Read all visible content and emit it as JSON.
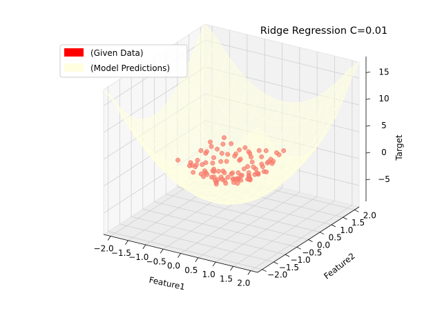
{
  "chart_data": {
    "type": "scatter3d",
    "title": "Ridge Regression C=0.01",
    "xlabel": "Feature1",
    "ylabel": "Feature2",
    "zlabel": "Target",
    "xlim": [
      -2.2,
      2.2
    ],
    "ylim": [
      -2.2,
      2.2
    ],
    "zlim": [
      -9,
      18
    ],
    "x_ticks": [
      "−2.0",
      "−1.5",
      "−1.0",
      "−0.5",
      "0.0",
      "0.5",
      "1.0",
      "1.5",
      "2.0"
    ],
    "y_ticks": [
      "−2.0",
      "−1.5",
      "−1.0",
      "−0.5",
      "0.0",
      "0.5",
      "1.0",
      "1.5",
      "2.0"
    ],
    "z_ticks": [
      "−5",
      "0",
      "5",
      "10",
      "15"
    ],
    "grid": true,
    "legend_position": "top-left",
    "legend": [
      {
        "label": "(Given Data)",
        "color": "#ff0000"
      },
      {
        "label": "(Model Predictions)",
        "color": "#ffffe0"
      }
    ],
    "scatter_color": "#fa8072",
    "surface_color": "#ffffe0",
    "surface_model": "target ≈ 2.5·Feature1² + 2.5·Feature2² − 5",
    "points": [
      [
        -0.6,
        -0.2,
        1.4
      ],
      [
        0.2,
        0.4,
        0.3
      ],
      [
        -0.1,
        -0.5,
        -0.6
      ],
      [
        0.5,
        -0.3,
        1.1
      ],
      [
        -0.3,
        0.6,
        0.9
      ],
      [
        0.7,
        0.5,
        1.5
      ],
      [
        -0.8,
        0.1,
        2.0
      ],
      [
        0.1,
        -0.8,
        0.2
      ],
      [
        0.4,
        0.1,
        -0.9
      ],
      [
        -0.4,
        -0.7,
        1.0
      ],
      [
        0.9,
        -0.6,
        2.4
      ],
      [
        -0.2,
        0.9,
        1.8
      ],
      [
        0.6,
        0.8,
        1.2
      ],
      [
        -0.9,
        -0.4,
        1.5
      ],
      [
        0.0,
        0.0,
        -0.3
      ],
      [
        0.3,
        -0.9,
        2.1
      ],
      [
        -0.5,
        0.3,
        0.4
      ],
      [
        0.8,
        0.2,
        0.9
      ],
      [
        -0.7,
        0.7,
        2.2
      ],
      [
        0.2,
        -0.2,
        -1.0
      ],
      [
        -0.1,
        0.5,
        0.7
      ],
      [
        0.5,
        0.6,
        0.2
      ],
      [
        -0.6,
        -0.8,
        2.6
      ],
      [
        1.0,
        0.0,
        1.7
      ],
      [
        -1.0,
        0.2,
        1.9
      ],
      [
        0.3,
        0.3,
        -0.4
      ],
      [
        -0.3,
        -0.3,
        0.5
      ],
      [
        0.7,
        -0.8,
        1.3
      ],
      [
        -0.4,
        0.8,
        0.6
      ],
      [
        0.1,
        0.7,
        1.1
      ],
      [
        -0.8,
        -0.6,
        1.6
      ],
      [
        0.6,
        -0.1,
        0.0
      ],
      [
        -0.2,
        -0.9,
        1.4
      ],
      [
        0.9,
        0.7,
        2.8
      ],
      [
        -0.5,
        0.0,
        -0.2
      ],
      [
        0.4,
        -0.5,
        0.8
      ],
      [
        -0.9,
        0.5,
        2.0
      ],
      [
        0.0,
        -0.6,
        0.3
      ],
      [
        0.2,
        0.9,
        1.9
      ],
      [
        -0.7,
        -0.2,
        0.9
      ],
      [
        0.8,
        -0.4,
        1.0
      ],
      [
        -0.1,
        0.2,
        -0.8
      ],
      [
        0.5,
        0.3,
        0.6
      ],
      [
        -0.6,
        0.5,
        1.2
      ],
      [
        0.3,
        -0.7,
        0.4
      ],
      [
        -0.3,
        0.1,
        -0.5
      ],
      [
        0.7,
        0.9,
        2.3
      ],
      [
        -0.8,
        0.9,
        2.7
      ],
      [
        0.1,
        -0.3,
        0.1
      ],
      [
        -0.4,
        -0.5,
        0.7
      ],
      [
        0.6,
        0.4,
        1.4
      ],
      [
        -0.2,
        0.7,
        0.2
      ],
      [
        0.9,
        -0.2,
        1.8
      ],
      [
        -1.0,
        -0.8,
        2.9
      ],
      [
        0.4,
        0.7,
        1.6
      ],
      [
        -0.5,
        -0.9,
        1.7
      ],
      [
        0.2,
        0.1,
        -0.6
      ],
      [
        -0.7,
        0.3,
        0.8
      ],
      [
        0.8,
        -0.9,
        2.5
      ],
      [
        0.0,
        0.8,
        1.3
      ],
      [
        -0.3,
        -0.1,
        0.0
      ],
      [
        0.5,
        -0.7,
        1.5
      ],
      [
        -0.9,
        -0.1,
        1.1
      ],
      [
        0.3,
        0.5,
        0.1
      ],
      [
        -0.1,
        -0.7,
        0.9
      ],
      [
        0.7,
        0.1,
        0.5
      ],
      [
        -0.6,
        0.9,
        1.9
      ],
      [
        0.1,
        0.4,
        -0.3
      ],
      [
        -0.4,
        0.4,
        0.3
      ],
      [
        0.9,
        0.4,
        2.0
      ],
      [
        -0.2,
        -0.4,
        -0.7
      ],
      [
        0.6,
        -0.5,
        0.9
      ],
      [
        -0.8,
        0.6,
        1.4
      ],
      [
        0.4,
        0.9,
        2.2
      ],
      [
        -0.5,
        -0.4,
        0.6
      ],
      [
        0.2,
        -0.6,
        0.5
      ],
      [
        -1.0,
        0.6,
        2.4
      ],
      [
        0.8,
        0.6,
        1.7
      ],
      [
        0.0,
        0.3,
        -0.9
      ],
      [
        -0.3,
        0.8,
        1.5
      ],
      [
        0.5,
        0.0,
        0.2
      ],
      [
        -0.7,
        -0.5,
        1.3
      ],
      [
        0.3,
        -0.2,
        -0.1
      ],
      [
        -0.2,
        0.0,
        -0.4
      ],
      [
        0.6,
        0.7,
        1.0
      ],
      [
        -0.9,
        0.3,
        1.6
      ],
      [
        0.1,
        -0.9,
        1.8
      ],
      [
        -0.4,
        -0.2,
        0.2
      ],
      [
        0.7,
        -0.3,
        0.7
      ],
      [
        -0.6,
        0.1,
        0.5
      ],
      [
        1.0,
        -0.5,
        2.6
      ],
      [
        -0.1,
        0.9,
        1.2
      ],
      [
        0.4,
        -0.4,
        0.4
      ],
      [
        -0.5,
        0.6,
        0.9
      ],
      [
        0.2,
        0.6,
        0.6
      ],
      [
        -0.8,
        -0.3,
        1.0
      ],
      [
        0.9,
        0.9,
        3.0
      ],
      [
        0.0,
        -0.4,
        -0.2
      ],
      [
        -0.3,
        -0.6,
        0.8
      ],
      [
        0.6,
        0.2,
        0.3
      ]
    ]
  }
}
